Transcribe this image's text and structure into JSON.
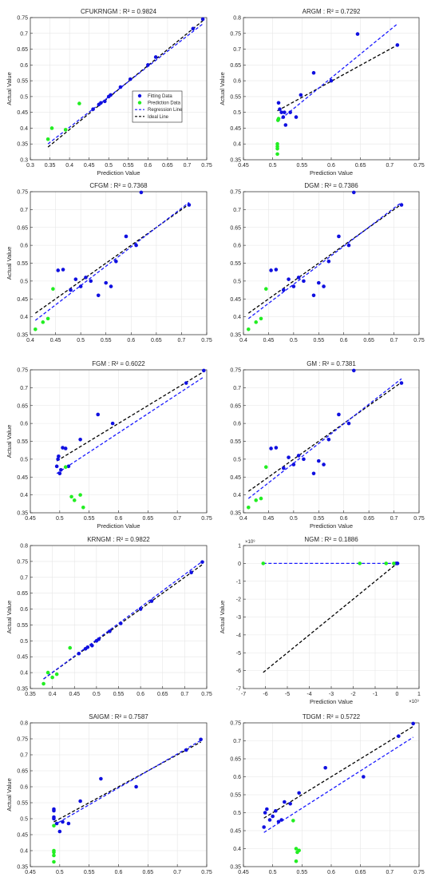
{
  "figure": {
    "legend": {
      "entries": [
        "Fitting Data",
        "Prediction Data",
        "Regression Line",
        "Ideal Line"
      ]
    }
  },
  "colors": {
    "fitting": "#1010e0",
    "prediction": "#22ee22",
    "regression": "#1a1aff",
    "ideal": "#000000",
    "grid": "#e6e6e6",
    "axis": "#262626"
  },
  "chart_data": [
    {
      "type": "scatter",
      "title": "CFUKRNGM : R² = 0.9824",
      "xlabel": "Prediction Value",
      "ylabel": "Actual Value",
      "xlim": [
        0.3,
        0.75
      ],
      "ylim": [
        0.3,
        0.75
      ],
      "xticks": [
        "0.3",
        "0.35",
        "0.4",
        "0.45",
        "0.5",
        "0.55",
        "0.6",
        "0.65",
        "0.7",
        "0.75"
      ],
      "yticks": [
        "0.3",
        "0.35",
        "0.4",
        "0.45",
        "0.5",
        "0.55",
        "0.6",
        "0.65",
        "0.7",
        "0.75"
      ],
      "grid": true,
      "legend_position": "center",
      "fitting": [
        [
          0.46,
          0.46
        ],
        [
          0.475,
          0.475
        ],
        [
          0.48,
          0.48
        ],
        [
          0.49,
          0.485
        ],
        [
          0.5,
          0.5
        ],
        [
          0.505,
          0.505
        ],
        [
          0.53,
          0.53
        ],
        [
          0.555,
          0.555
        ],
        [
          0.6,
          0.6
        ],
        [
          0.62,
          0.625
        ],
        [
          0.715,
          0.715
        ],
        [
          0.74,
          0.745
        ]
      ],
      "prediction": [
        [
          0.345,
          0.365
        ],
        [
          0.355,
          0.4
        ],
        [
          0.39,
          0.395
        ],
        [
          0.425,
          0.478
        ]
      ],
      "regression_line": [
        [
          0.345,
          0.35
        ],
        [
          0.74,
          0.73
        ]
      ],
      "ideal_line": [
        [
          0.345,
          0.34
        ],
        [
          0.74,
          0.74
        ]
      ]
    },
    {
      "type": "scatter",
      "title": "ARGM : R² = 0.7292",
      "xlabel": "Prediction Value",
      "ylabel": "Actual Value",
      "xlim": [
        0.45,
        0.75
      ],
      "ylim": [
        0.35,
        0.8
      ],
      "xticks": [
        "0.45",
        "0.5",
        "0.55",
        "0.6",
        "0.65",
        "0.7",
        "0.75"
      ],
      "yticks": [
        "0.35",
        "0.4",
        "0.45",
        "0.5",
        "0.55",
        "0.6",
        "0.65",
        "0.7",
        "0.75",
        "0.8"
      ],
      "grid": true,
      "fitting": [
        [
          0.51,
          0.53
        ],
        [
          0.512,
          0.51
        ],
        [
          0.515,
          0.5
        ],
        [
          0.518,
          0.485
        ],
        [
          0.52,
          0.5
        ],
        [
          0.522,
          0.46
        ],
        [
          0.53,
          0.5
        ],
        [
          0.54,
          0.485
        ],
        [
          0.548,
          0.555
        ],
        [
          0.57,
          0.625
        ],
        [
          0.6,
          0.6
        ],
        [
          0.645,
          0.748
        ],
        [
          0.713,
          0.713
        ]
      ],
      "prediction": [
        [
          0.508,
          0.368
        ],
        [
          0.508,
          0.385
        ],
        [
          0.508,
          0.392
        ],
        [
          0.508,
          0.4
        ],
        [
          0.509,
          0.475
        ],
        [
          0.51,
          0.48
        ]
      ],
      "regression_line": [
        [
          0.508,
          0.47
        ],
        [
          0.713,
          0.78
        ]
      ],
      "ideal_line": [
        [
          0.508,
          0.505
        ],
        [
          0.713,
          0.713
        ]
      ]
    },
    {
      "type": "scatter",
      "title": "CFGM : R² = 0.7368",
      "xlabel": "",
      "ylabel": "Actual Value",
      "xlim": [
        0.4,
        0.75
      ],
      "ylim": [
        0.35,
        0.75
      ],
      "xticks": [
        "0.4",
        "0.45",
        "0.5",
        "0.55",
        "0.6",
        "0.65",
        "0.7",
        "0.75"
      ],
      "yticks": [
        "0.35",
        "0.4",
        "0.45",
        "0.5",
        "0.55",
        "0.6",
        "0.65",
        "0.7",
        "0.75"
      ],
      "grid": true,
      "fitting": [
        [
          0.455,
          0.53
        ],
        [
          0.465,
          0.532
        ],
        [
          0.48,
          0.475
        ],
        [
          0.49,
          0.505
        ],
        [
          0.5,
          0.485
        ],
        [
          0.51,
          0.51
        ],
        [
          0.52,
          0.5
        ],
        [
          0.535,
          0.46
        ],
        [
          0.55,
          0.495
        ],
        [
          0.56,
          0.485
        ],
        [
          0.57,
          0.555
        ],
        [
          0.59,
          0.625
        ],
        [
          0.61,
          0.6
        ],
        [
          0.62,
          0.748
        ],
        [
          0.715,
          0.713
        ]
      ],
      "prediction": [
        [
          0.41,
          0.365
        ],
        [
          0.425,
          0.385
        ],
        [
          0.435,
          0.395
        ],
        [
          0.445,
          0.478
        ]
      ],
      "regression_line": [
        [
          0.41,
          0.39
        ],
        [
          0.715,
          0.72
        ]
      ],
      "ideal_line": [
        [
          0.41,
          0.41
        ],
        [
          0.715,
          0.715
        ]
      ]
    },
    {
      "type": "scatter",
      "title": "DGM : R² = 0.7386",
      "xlabel": "",
      "ylabel": "",
      "xlim": [
        0.4,
        0.75
      ],
      "ylim": [
        0.35,
        0.75
      ],
      "xticks": [
        "0.4",
        "0.45",
        "0.5",
        "0.55",
        "0.6",
        "0.65",
        "0.7",
        "0.75"
      ],
      "yticks": [
        "0.35",
        "0.4",
        "0.45",
        "0.5",
        "0.55",
        "0.6",
        "0.65",
        "0.7",
        "0.75"
      ],
      "grid": true,
      "fitting": [
        [
          0.455,
          0.53
        ],
        [
          0.465,
          0.532
        ],
        [
          0.48,
          0.475
        ],
        [
          0.49,
          0.505
        ],
        [
          0.5,
          0.485
        ],
        [
          0.51,
          0.51
        ],
        [
          0.52,
          0.5
        ],
        [
          0.54,
          0.46
        ],
        [
          0.55,
          0.495
        ],
        [
          0.56,
          0.485
        ],
        [
          0.57,
          0.555
        ],
        [
          0.59,
          0.625
        ],
        [
          0.61,
          0.6
        ],
        [
          0.62,
          0.748
        ],
        [
          0.715,
          0.713
        ]
      ],
      "prediction": [
        [
          0.41,
          0.365
        ],
        [
          0.425,
          0.385
        ],
        [
          0.435,
          0.395
        ],
        [
          0.445,
          0.478
        ]
      ],
      "regression_line": [
        [
          0.41,
          0.395
        ],
        [
          0.715,
          0.72
        ]
      ],
      "ideal_line": [
        [
          0.41,
          0.41
        ],
        [
          0.715,
          0.715
        ]
      ]
    },
    {
      "type": "scatter",
      "title": "FGM : R² = 0.6022",
      "xlabel": "Prediction Value",
      "ylabel": "Actual Value",
      "xlim": [
        0.45,
        0.75
      ],
      "ylim": [
        0.35,
        0.75
      ],
      "xticks": [
        "0.45",
        "0.5",
        "0.55",
        "0.6",
        "0.65",
        "0.7",
        "0.75"
      ],
      "yticks": [
        "0.35",
        "0.4",
        "0.45",
        "0.5",
        "0.55",
        "0.6",
        "0.65",
        "0.7",
        "0.75"
      ],
      "grid": true,
      "fitting": [
        [
          0.495,
          0.48
        ],
        [
          0.497,
          0.5
        ],
        [
          0.498,
          0.508
        ],
        [
          0.5,
          0.46
        ],
        [
          0.502,
          0.47
        ],
        [
          0.505,
          0.532
        ],
        [
          0.51,
          0.53
        ],
        [
          0.515,
          0.48
        ],
        [
          0.535,
          0.555
        ],
        [
          0.565,
          0.625
        ],
        [
          0.59,
          0.6
        ],
        [
          0.715,
          0.713
        ],
        [
          0.745,
          0.748
        ]
      ],
      "prediction": [
        [
          0.52,
          0.395
        ],
        [
          0.525,
          0.385
        ],
        [
          0.535,
          0.4
        ],
        [
          0.54,
          0.365
        ],
        [
          0.51,
          0.478
        ]
      ],
      "regression_line": [
        [
          0.495,
          0.46
        ],
        [
          0.745,
          0.73
        ]
      ],
      "ideal_line": [
        [
          0.495,
          0.495
        ],
        [
          0.745,
          0.745
        ]
      ]
    },
    {
      "type": "scatter",
      "title": "GM : R² = 0.7381",
      "xlabel": "Prediction Value",
      "ylabel": "",
      "xlim": [
        0.4,
        0.75
      ],
      "ylim": [
        0.35,
        0.75
      ],
      "xticks": [
        "0.4",
        "0.45",
        "0.5",
        "0.55",
        "0.6",
        "0.65",
        "0.7",
        "0.75"
      ],
      "yticks": [
        "0.35",
        "0.4",
        "0.45",
        "0.5",
        "0.55",
        "0.6",
        "0.65",
        "0.7",
        "0.75"
      ],
      "grid": true,
      "fitting": [
        [
          0.455,
          0.53
        ],
        [
          0.465,
          0.532
        ],
        [
          0.48,
          0.475
        ],
        [
          0.49,
          0.505
        ],
        [
          0.5,
          0.485
        ],
        [
          0.51,
          0.51
        ],
        [
          0.52,
          0.5
        ],
        [
          0.54,
          0.46
        ],
        [
          0.55,
          0.495
        ],
        [
          0.56,
          0.485
        ],
        [
          0.57,
          0.555
        ],
        [
          0.59,
          0.625
        ],
        [
          0.61,
          0.6
        ],
        [
          0.62,
          0.748
        ],
        [
          0.715,
          0.713
        ]
      ],
      "prediction": [
        [
          0.41,
          0.365
        ],
        [
          0.425,
          0.385
        ],
        [
          0.435,
          0.39
        ],
        [
          0.445,
          0.478
        ]
      ],
      "regression_line": [
        [
          0.41,
          0.39
        ],
        [
          0.715,
          0.725
        ]
      ],
      "ideal_line": [
        [
          0.41,
          0.41
        ],
        [
          0.715,
          0.715
        ]
      ]
    },
    {
      "type": "scatter",
      "title": "KRNGM : R² = 0.9822",
      "xlabel": "",
      "ylabel": "Actual Value",
      "xlim": [
        0.35,
        0.75
      ],
      "ylim": [
        0.35,
        0.8
      ],
      "xticks": [
        "0.35",
        "0.4",
        "0.45",
        "0.5",
        "0.55",
        "0.6",
        "0.65",
        "0.7",
        "0.75"
      ],
      "yticks": [
        "0.35",
        "0.4",
        "0.45",
        "0.5",
        "0.55",
        "0.6",
        "0.65",
        "0.7",
        "0.75",
        "0.8"
      ],
      "grid": true,
      "fitting": [
        [
          0.46,
          0.46
        ],
        [
          0.475,
          0.475
        ],
        [
          0.48,
          0.48
        ],
        [
          0.49,
          0.485
        ],
        [
          0.5,
          0.5
        ],
        [
          0.505,
          0.505
        ],
        [
          0.53,
          0.53
        ],
        [
          0.555,
          0.555
        ],
        [
          0.6,
          0.6
        ],
        [
          0.625,
          0.625
        ],
        [
          0.715,
          0.715
        ],
        [
          0.74,
          0.748
        ]
      ],
      "prediction": [
        [
          0.38,
          0.365
        ],
        [
          0.39,
          0.4
        ],
        [
          0.4,
          0.385
        ],
        [
          0.41,
          0.395
        ],
        [
          0.44,
          0.478
        ]
      ],
      "regression_line": [
        [
          0.38,
          0.38
        ],
        [
          0.74,
          0.75
        ]
      ],
      "ideal_line": [
        [
          0.38,
          0.38
        ],
        [
          0.74,
          0.74
        ]
      ]
    },
    {
      "type": "scatter",
      "title": "NGM : R² = 0.1886",
      "xlabel": "Prediction Value",
      "ylabel": "Actual Value",
      "x_exponent": "×10⁹",
      "y_exponent": "×10⁹",
      "xlim": [
        -7,
        1
      ],
      "ylim": [
        -7,
        1
      ],
      "xticks": [
        "-7",
        "-6",
        "-5",
        "-4",
        "-3",
        "-2",
        "-1",
        "0",
        "1"
      ],
      "yticks": [
        "-7",
        "-6",
        "-5",
        "-4",
        "-3",
        "-2",
        "-1",
        "0",
        "1"
      ],
      "grid": true,
      "fitting": [
        [
          -0.05,
          0
        ],
        [
          0,
          0
        ],
        [
          0.02,
          0
        ]
      ],
      "prediction": [
        [
          -6.1,
          0
        ],
        [
          -1.7,
          0
        ],
        [
          -0.5,
          0
        ],
        [
          -0.15,
          0
        ]
      ],
      "regression_line": [
        [
          -6.1,
          0
        ],
        [
          0.02,
          0
        ]
      ],
      "ideal_line": [
        [
          -6.1,
          -6.1
        ],
        [
          0,
          0
        ]
      ]
    },
    {
      "type": "scatter",
      "title": "SAIGM : R² = 0.7587",
      "xlabel": "Prediction Value",
      "ylabel": "Actual Value",
      "xlim": [
        0.45,
        0.75
      ],
      "ylim": [
        0.35,
        0.8
      ],
      "xticks": [
        "0.45",
        "0.5",
        "0.55",
        "0.6",
        "0.65",
        "0.7",
        "0.75"
      ],
      "yticks": [
        "0.35",
        "0.4",
        "0.45",
        "0.5",
        "0.55",
        "0.6",
        "0.65",
        "0.7",
        "0.75",
        "0.8"
      ],
      "grid": true,
      "fitting": [
        [
          0.49,
          0.53
        ],
        [
          0.49,
          0.525
        ],
        [
          0.49,
          0.505
        ],
        [
          0.49,
          0.5
        ],
        [
          0.495,
          0.485
        ],
        [
          0.5,
          0.46
        ],
        [
          0.505,
          0.49
        ],
        [
          0.515,
          0.485
        ],
        [
          0.535,
          0.555
        ],
        [
          0.57,
          0.625
        ],
        [
          0.63,
          0.6
        ],
        [
          0.715,
          0.715
        ],
        [
          0.74,
          0.748
        ]
      ],
      "prediction": [
        [
          0.49,
          0.365
        ],
        [
          0.49,
          0.385
        ],
        [
          0.49,
          0.395
        ],
        [
          0.49,
          0.4
        ],
        [
          0.49,
          0.478
        ]
      ],
      "regression_line": [
        [
          0.49,
          0.48
        ],
        [
          0.74,
          0.745
        ]
      ],
      "ideal_line": [
        [
          0.49,
          0.49
        ],
        [
          0.74,
          0.74
        ]
      ]
    },
    {
      "type": "scatter",
      "title": "TDGM : R² = 0.5722",
      "xlabel": "Prediction Value",
      "ylabel": "",
      "xlim": [
        0.45,
        0.75
      ],
      "ylim": [
        0.35,
        0.75
      ],
      "xticks": [
        "0.45",
        "0.5",
        "0.55",
        "0.6",
        "0.65",
        "0.7",
        "0.75"
      ],
      "yticks": [
        "0.35",
        "0.4",
        "0.45",
        "0.5",
        "0.55",
        "0.6",
        "0.65",
        "0.7",
        "0.75"
      ],
      "grid": true,
      "fitting": [
        [
          0.485,
          0.46
        ],
        [
          0.487,
          0.5
        ],
        [
          0.49,
          0.51
        ],
        [
          0.495,
          0.48
        ],
        [
          0.5,
          0.49
        ],
        [
          0.505,
          0.505
        ],
        [
          0.51,
          0.475
        ],
        [
          0.515,
          0.48
        ],
        [
          0.52,
          0.53
        ],
        [
          0.53,
          0.525
        ],
        [
          0.545,
          0.555
        ],
        [
          0.59,
          0.625
        ],
        [
          0.655,
          0.6
        ],
        [
          0.715,
          0.713
        ],
        [
          0.74,
          0.748
        ]
      ],
      "prediction": [
        [
          0.535,
          0.478
        ],
        [
          0.54,
          0.4
        ],
        [
          0.542,
          0.39
        ],
        [
          0.545,
          0.395
        ],
        [
          0.54,
          0.365
        ]
      ],
      "regression_line": [
        [
          0.485,
          0.445
        ],
        [
          0.74,
          0.71
        ]
      ],
      "ideal_line": [
        [
          0.485,
          0.485
        ],
        [
          0.74,
          0.74
        ]
      ]
    }
  ]
}
